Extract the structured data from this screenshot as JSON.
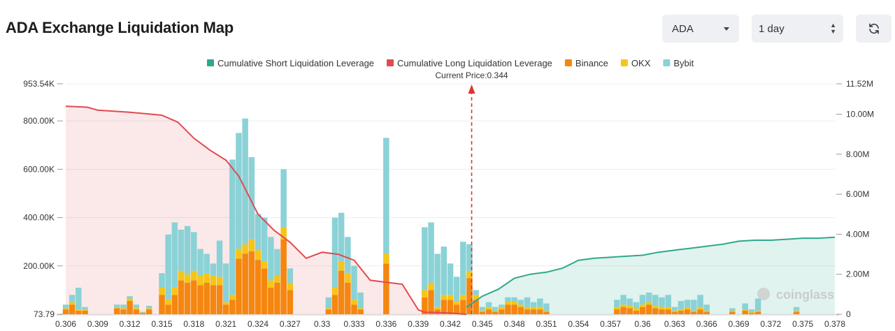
{
  "page_title": "ADA Exchange Liquidation Map",
  "controls": {
    "coin_select": "ADA",
    "period_select": "1 day",
    "refresh_icon": "refresh-icon"
  },
  "colors": {
    "short_cum": "#2ea88b",
    "long_cum": "#e24a50",
    "binance": "#f5860f",
    "okx": "#f5c518",
    "bybit": "#8ad2d6"
  },
  "chart_data": {
    "type": "bar",
    "current_price_label": "Current Price:0.344",
    "current_price": 0.344,
    "watermark": "coinglass",
    "legend": [
      {
        "name": "Cumulative Short Liquidation Leverage",
        "color": "#2ea88b"
      },
      {
        "name": "Cumulative Long Liquidation Leverage",
        "color": "#e24a50"
      },
      {
        "name": "Binance",
        "color": "#f5860f"
      },
      {
        "name": "OKX",
        "color": "#f5c518"
      },
      {
        "name": "Bybit",
        "color": "#8ad2d6"
      }
    ],
    "x_tick_labels": [
      "0.306",
      "0.309",
      "0.312",
      "0.315",
      "0.318",
      "0.321",
      "0.324",
      "0.327",
      "0.33",
      "0.333",
      "0.336",
      "0.339",
      "0.342",
      "0.345",
      "0.348",
      "0.351",
      "0.354",
      "0.357",
      "0.36",
      "0.363",
      "0.366",
      "0.369",
      "0.372",
      "0.375",
      "0.378"
    ],
    "y_left_tick_labels": [
      "73.79",
      "200.00K",
      "400.00K",
      "600.00K",
      "800.00K",
      "953.54K"
    ],
    "y_left_ticks": [
      73.79,
      200000,
      400000,
      600000,
      800000,
      953540
    ],
    "y_left_range": [
      73.79,
      953540
    ],
    "y_right_tick_labels": [
      "0",
      "2.00M",
      "4.00M",
      "6.00M",
      "8.00M",
      "10.00M",
      "11.52M"
    ],
    "y_right_ticks": [
      0,
      2000000,
      4000000,
      6000000,
      8000000,
      10000000,
      11520000
    ],
    "y_right_range": [
      0,
      11520000
    ],
    "x_range": [
      0.306,
      0.378
    ],
    "bars": {
      "price": [
        0.306,
        0.3066,
        0.3072,
        0.3078,
        0.3084,
        0.309,
        0.3096,
        0.3102,
        0.3108,
        0.3114,
        0.312,
        0.3126,
        0.3132,
        0.3138,
        0.3144,
        0.315,
        0.3156,
        0.3162,
        0.3168,
        0.3174,
        0.318,
        0.3186,
        0.3192,
        0.3198,
        0.3204,
        0.321,
        0.3216,
        0.3222,
        0.3228,
        0.3234,
        0.324,
        0.3246,
        0.3252,
        0.3258,
        0.3264,
        0.327,
        0.3276,
        0.3282,
        0.3288,
        0.3294,
        0.33,
        0.3306,
        0.3312,
        0.3318,
        0.3324,
        0.333,
        0.3336,
        0.3342,
        0.3348,
        0.3354,
        0.336,
        0.3366,
        0.3372,
        0.3378,
        0.3384,
        0.339,
        0.3396,
        0.3402,
        0.3408,
        0.3414,
        0.342,
        0.3426,
        0.3432,
        0.3438,
        0.3444,
        0.345,
        0.3456,
        0.3462,
        0.3468,
        0.3474,
        0.348,
        0.3486,
        0.3492,
        0.3498,
        0.3504,
        0.351,
        0.3516,
        0.3522,
        0.3528,
        0.3534,
        0.354,
        0.3546,
        0.3552,
        0.3558,
        0.3564,
        0.357,
        0.3576,
        0.3582,
        0.3588,
        0.3594,
        0.36,
        0.3606,
        0.3612,
        0.3618,
        0.3624,
        0.363,
        0.3636,
        0.3642,
        0.3648,
        0.3654,
        0.366,
        0.3666,
        0.3672,
        0.3678,
        0.3684,
        0.369,
        0.3696,
        0.3702,
        0.3708,
        0.3714,
        0.372,
        0.3726,
        0.3732,
        0.3738,
        0.3744,
        0.375,
        0.3756,
        0.3762,
        0.3768,
        0.3774,
        0.378
      ],
      "binance": [
        20000,
        40000,
        15000,
        15000,
        0,
        0,
        0,
        0,
        25000,
        20000,
        55000,
        20000,
        5000,
        20000,
        0,
        80000,
        40000,
        80000,
        140000,
        130000,
        140000,
        120000,
        130000,
        120000,
        120000,
        40000,
        60000,
        230000,
        250000,
        260000,
        225000,
        190000,
        110000,
        130000,
        310000,
        100000,
        0,
        0,
        0,
        0,
        0,
        20000,
        80000,
        180000,
        130000,
        40000,
        20000,
        0,
        0,
        0,
        210000,
        0,
        0,
        0,
        0,
        0,
        70000,
        100000,
        20000,
        60000,
        60000,
        40000,
        60000,
        150000,
        60000,
        10000,
        20000,
        10000,
        20000,
        40000,
        40000,
        30000,
        20000,
        20000,
        20000,
        10000,
        0,
        0,
        0,
        0,
        0,
        0,
        0,
        0,
        0,
        0,
        20000,
        30000,
        25000,
        15000,
        30000,
        40000,
        25000,
        20000,
        20000,
        10000,
        15000,
        20000,
        10000,
        20000,
        10000,
        0,
        0,
        0,
        10000,
        0,
        15000,
        5000,
        10000,
        0,
        0,
        0,
        0,
        0,
        10000,
        0,
        0,
        0,
        0,
        0,
        0,
        0,
        0
      ],
      "okx": [
        5000,
        10000,
        5000,
        5000,
        0,
        0,
        0,
        0,
        5000,
        5000,
        10000,
        5000,
        2000,
        5000,
        0,
        30000,
        20000,
        30000,
        40000,
        35000,
        40000,
        40000,
        40000,
        40000,
        35000,
        10000,
        20000,
        40000,
        40000,
        50000,
        40000,
        30000,
        30000,
        30000,
        50000,
        30000,
        0,
        0,
        0,
        0,
        0,
        5000,
        30000,
        40000,
        40000,
        20000,
        5000,
        0,
        0,
        0,
        40000,
        0,
        0,
        0,
        0,
        0,
        30000,
        30000,
        10000,
        20000,
        20000,
        15000,
        20000,
        30000,
        20000,
        5000,
        10000,
        5000,
        10000,
        15000,
        15000,
        10000,
        10000,
        10000,
        10000,
        5000,
        0,
        0,
        0,
        0,
        0,
        0,
        0,
        0,
        0,
        0,
        10000,
        10000,
        10000,
        10000,
        10000,
        10000,
        10000,
        10000,
        10000,
        5000,
        5000,
        10000,
        5000,
        10000,
        5000,
        0,
        0,
        0,
        5000,
        0,
        5000,
        5000,
        5000,
        0,
        0,
        0,
        0,
        0,
        5000,
        0,
        0,
        0,
        0,
        0,
        0,
        0,
        0
      ],
      "bybit": [
        15000,
        30000,
        90000,
        10000,
        0,
        0,
        0,
        0,
        10000,
        15000,
        10000,
        15000,
        3000,
        10000,
        0,
        60000,
        270000,
        270000,
        170000,
        200000,
        160000,
        110000,
        80000,
        50000,
        150000,
        160000,
        560000,
        480000,
        520000,
        340000,
        150000,
        180000,
        180000,
        110000,
        240000,
        60000,
        0,
        0,
        0,
        0,
        0,
        45000,
        290000,
        200000,
        150000,
        140000,
        65000,
        0,
        0,
        0,
        480000,
        0,
        0,
        0,
        0,
        0,
        260000,
        250000,
        220000,
        200000,
        130000,
        100000,
        220000,
        110000,
        20000,
        15000,
        20000,
        15000,
        10000,
        15000,
        15000,
        20000,
        40000,
        20000,
        35000,
        30000,
        0,
        0,
        0,
        0,
        0,
        0,
        0,
        0,
        0,
        0,
        30000,
        40000,
        30000,
        25000,
        40000,
        40000,
        45000,
        40000,
        50000,
        15000,
        35000,
        30000,
        45000,
        50000,
        25000,
        0,
        0,
        0,
        10000,
        0,
        25000,
        10000,
        50000,
        0,
        0,
        0,
        0,
        0,
        15000,
        0,
        0,
        0,
        0,
        0,
        0,
        0,
        0
      ]
    },
    "long_cumulative": {
      "price": [
        0.306,
        0.308,
        0.309,
        0.312,
        0.315,
        0.3165,
        0.318,
        0.3195,
        0.321,
        0.3222,
        0.324,
        0.3255,
        0.327,
        0.3285,
        0.33,
        0.3315,
        0.333,
        0.3345,
        0.336,
        0.3375,
        0.339,
        0.3396,
        0.341,
        0.342,
        0.3435
      ],
      "value": [
        10400000,
        10350000,
        10200000,
        10100000,
        9950000,
        9600000,
        8800000,
        8200000,
        7700000,
        6900000,
        5000000,
        4200000,
        3600000,
        2800000,
        3100000,
        3000000,
        2700000,
        1700000,
        1600000,
        1500000,
        220000,
        100000,
        80000,
        60000,
        0
      ]
    },
    "short_cumulative": {
      "price": [
        0.3435,
        0.345,
        0.3465,
        0.348,
        0.3495,
        0.351,
        0.3525,
        0.354,
        0.3555,
        0.357,
        0.3585,
        0.36,
        0.3615,
        0.363,
        0.3645,
        0.366,
        0.3675,
        0.369,
        0.3705,
        0.372,
        0.3735,
        0.375,
        0.3765,
        0.378
      ],
      "value": [
        350000,
        900000,
        1250000,
        1800000,
        2000000,
        2100000,
        2300000,
        2700000,
        2800000,
        2850000,
        2900000,
        2950000,
        3100000,
        3200000,
        3300000,
        3400000,
        3500000,
        3650000,
        3700000,
        3700000,
        3750000,
        3800000,
        3800000,
        3850000
      ]
    }
  }
}
